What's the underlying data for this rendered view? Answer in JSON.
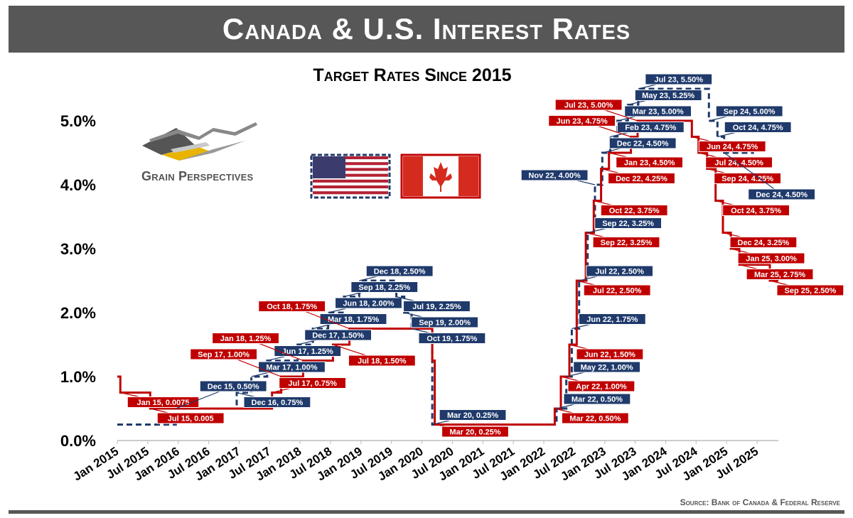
{
  "header": {
    "title": "Canada & U.S. Interest Rates",
    "subtitle": "Target Rates Since 2015"
  },
  "logo": {
    "text": "Grain Perspectives",
    "icon": "grain-perspectives-logo-icon"
  },
  "flags": [
    {
      "name": "us-flag-icon",
      "color": "#b22234"
    },
    {
      "name": "canada-flag-icon",
      "color": "#d52b1e"
    }
  ],
  "source": "Source: Bank of Canada & Federal Reserve",
  "colors": {
    "us": "#1f3a6b",
    "canada": "#c00000",
    "banner": "#575757"
  },
  "chart_data": {
    "type": "line",
    "title": "Target Rates Since 2015",
    "xlim": [
      2015.0,
      2025.85
    ],
    "ylim": [
      0,
      5.5
    ],
    "yticks": [
      "0.0%",
      "1.0%",
      "2.0%",
      "3.0%",
      "4.0%",
      "5.0%"
    ],
    "xticks": [
      "Jan 2015",
      "Jul 2015",
      "Jan 2016",
      "Jul 2016",
      "Jan 2017",
      "Jul 2017",
      "Jan 2018",
      "Jul 2018",
      "Jan 2019",
      "Jul 2019",
      "Jan 2020",
      "Jul 2020",
      "Jan 2021",
      "Jul 2021",
      "Jan 2022",
      "Jul 2022",
      "Jan 2023",
      "Jul 2023",
      "Jan 2024",
      "Jul 2024",
      "Jan 2025",
      "Jul 2025"
    ],
    "series": [
      {
        "key": "us",
        "style": "dashed",
        "color": "#1f3a6b",
        "points": [
          [
            2015.0,
            0.25
          ],
          [
            2015.96,
            0.25
          ],
          [
            2015.96,
            0.5
          ],
          [
            2016.96,
            0.5
          ],
          [
            2016.96,
            0.75
          ],
          [
            2017.2,
            0.75
          ],
          [
            2017.2,
            1.0
          ],
          [
            2017.46,
            1.0
          ],
          [
            2017.46,
            1.25
          ],
          [
            2017.96,
            1.25
          ],
          [
            2017.96,
            1.5
          ],
          [
            2018.21,
            1.5
          ],
          [
            2018.21,
            1.75
          ],
          [
            2018.46,
            1.75
          ],
          [
            2018.46,
            2.0
          ],
          [
            2018.72,
            2.0
          ],
          [
            2018.72,
            2.25
          ],
          [
            2018.97,
            2.25
          ],
          [
            2018.97,
            2.5
          ],
          [
            2019.58,
            2.5
          ],
          [
            2019.58,
            2.25
          ],
          [
            2019.71,
            2.25
          ],
          [
            2019.71,
            2.0
          ],
          [
            2019.83,
            2.0
          ],
          [
            2019.83,
            1.75
          ],
          [
            2020.17,
            1.75
          ],
          [
            2020.17,
            0.25
          ],
          [
            2022.21,
            0.25
          ],
          [
            2022.21,
            0.5
          ],
          [
            2022.37,
            0.5
          ],
          [
            2022.37,
            1.0
          ],
          [
            2022.46,
            1.0
          ],
          [
            2022.46,
            1.75
          ],
          [
            2022.58,
            1.75
          ],
          [
            2022.58,
            2.5
          ],
          [
            2022.72,
            2.5
          ],
          [
            2022.72,
            3.25
          ],
          [
            2022.84,
            3.25
          ],
          [
            2022.84,
            4.0
          ],
          [
            2022.96,
            4.0
          ],
          [
            2022.96,
            4.5
          ],
          [
            2023.09,
            4.5
          ],
          [
            2023.09,
            4.75
          ],
          [
            2023.21,
            4.75
          ],
          [
            2023.21,
            5.0
          ],
          [
            2023.38,
            5.0
          ],
          [
            2023.38,
            5.25
          ],
          [
            2023.55,
            5.25
          ],
          [
            2023.55,
            5.5
          ],
          [
            2024.71,
            5.5
          ],
          [
            2024.71,
            5.0
          ],
          [
            2024.85,
            5.0
          ],
          [
            2024.85,
            4.75
          ],
          [
            2024.96,
            4.75
          ],
          [
            2024.96,
            4.5
          ],
          [
            2025.45,
            4.5
          ]
        ]
      },
      {
        "key": "canada",
        "style": "solid",
        "color": "#c00000",
        "points": [
          [
            2015.0,
            1.0
          ],
          [
            2015.05,
            1.0
          ],
          [
            2015.05,
            0.75
          ],
          [
            2015.54,
            0.75
          ],
          [
            2015.54,
            0.5
          ],
          [
            2017.54,
            0.5
          ],
          [
            2017.54,
            0.75
          ],
          [
            2017.69,
            0.75
          ],
          [
            2017.69,
            1.0
          ],
          [
            2018.05,
            1.0
          ],
          [
            2018.05,
            1.25
          ],
          [
            2018.54,
            1.25
          ],
          [
            2018.54,
            1.5
          ],
          [
            2018.81,
            1.5
          ],
          [
            2018.81,
            1.75
          ],
          [
            2020.17,
            1.75
          ],
          [
            2020.17,
            1.25
          ],
          [
            2020.21,
            1.25
          ],
          [
            2020.21,
            0.25
          ],
          [
            2022.18,
            0.25
          ],
          [
            2022.18,
            0.5
          ],
          [
            2022.28,
            0.5
          ],
          [
            2022.28,
            1.0
          ],
          [
            2022.42,
            1.0
          ],
          [
            2022.42,
            1.5
          ],
          [
            2022.54,
            1.5
          ],
          [
            2022.54,
            2.5
          ],
          [
            2022.69,
            2.5
          ],
          [
            2022.69,
            3.25
          ],
          [
            2022.82,
            3.25
          ],
          [
            2022.82,
            3.75
          ],
          [
            2022.94,
            3.75
          ],
          [
            2022.94,
            4.25
          ],
          [
            2023.07,
            4.25
          ],
          [
            2023.07,
            4.5
          ],
          [
            2023.43,
            4.5
          ],
          [
            2023.43,
            4.75
          ],
          [
            2023.54,
            4.75
          ],
          [
            2023.54,
            5.0
          ],
          [
            2024.43,
            5.0
          ],
          [
            2024.43,
            4.75
          ],
          [
            2024.54,
            4.75
          ],
          [
            2024.54,
            4.5
          ],
          [
            2024.68,
            4.5
          ],
          [
            2024.68,
            4.25
          ],
          [
            2024.82,
            4.25
          ],
          [
            2024.82,
            3.75
          ],
          [
            2024.94,
            3.75
          ],
          [
            2024.94,
            3.25
          ],
          [
            2025.07,
            3.25
          ],
          [
            2025.07,
            3.0
          ],
          [
            2025.21,
            3.0
          ],
          [
            2025.21,
            2.75
          ],
          [
            2025.71,
            2.75
          ],
          [
            2025.71,
            2.5
          ],
          [
            2025.85,
            2.5
          ]
        ]
      }
    ],
    "annotations": [
      {
        "text": "Jan 15, 0.0075",
        "series": "canada",
        "x": 2015.05,
        "y": 0.75
      },
      {
        "text": "Jul 15, 0.005",
        "series": "canada",
        "x": 2015.54,
        "y": 0.5
      },
      {
        "text": "Dec 15, 0.50%",
        "series": "us",
        "x": 2015.96,
        "y": 0.5
      },
      {
        "text": "Dec 16, 0.75%",
        "series": "us",
        "x": 2016.96,
        "y": 0.75
      },
      {
        "text": "Mar 17, 1.00%",
        "series": "us",
        "x": 2017.2,
        "y": 1.0
      },
      {
        "text": "Jun 17, 1.25%",
        "series": "us",
        "x": 2017.46,
        "y": 1.25
      },
      {
        "text": "Dec 17, 1.50%",
        "series": "us",
        "x": 2017.96,
        "y": 1.5
      },
      {
        "text": "Mar 18, 1.75%",
        "series": "us",
        "x": 2018.21,
        "y": 1.75
      },
      {
        "text": "Jun 18, 2.00%",
        "series": "us",
        "x": 2018.46,
        "y": 2.0
      },
      {
        "text": "Sep 18, 2.25%",
        "series": "us",
        "x": 2018.72,
        "y": 2.25
      },
      {
        "text": "Dec 18, 2.50%",
        "series": "us",
        "x": 2018.97,
        "y": 2.5
      },
      {
        "text": "Jul 17, 0.75%",
        "series": "canada",
        "x": 2017.54,
        "y": 0.75
      },
      {
        "text": "Sep 17, 1.00%",
        "series": "canada",
        "x": 2017.69,
        "y": 1.0
      },
      {
        "text": "Jan 18, 1.25%",
        "series": "canada",
        "x": 2018.05,
        "y": 1.25
      },
      {
        "text": "Jul 18, 1.50%",
        "series": "canada",
        "x": 2018.54,
        "y": 1.5
      },
      {
        "text": "Oct 18, 1.75%",
        "series": "canada",
        "x": 2018.81,
        "y": 1.75
      },
      {
        "text": "Jul 19, 2.25%",
        "series": "us",
        "x": 2019.58,
        "y": 2.25
      },
      {
        "text": "Sep 19, 2.00%",
        "series": "us",
        "x": 2019.71,
        "y": 2.0
      },
      {
        "text": "Oct 19, 1.75%",
        "series": "us",
        "x": 2019.83,
        "y": 1.75
      },
      {
        "text": "Mar 20, 0.25%",
        "series": "us",
        "x": 2020.17,
        "y": 0.25
      },
      {
        "text": "Mar 20, 0.25%",
        "series": "canada",
        "x": 2020.21,
        "y": 0.25
      },
      {
        "text": "Mar 22, 0.50%",
        "series": "canada",
        "x": 2022.18,
        "y": 0.5
      },
      {
        "text": "Apr 22, 1.00%",
        "series": "canada",
        "x": 2022.28,
        "y": 1.0
      },
      {
        "text": "Jun 22, 1.50%",
        "series": "canada",
        "x": 2022.42,
        "y": 1.5
      },
      {
        "text": "Jul 22, 2.50%",
        "series": "canada",
        "x": 2022.54,
        "y": 2.5
      },
      {
        "text": "Sep 22, 3.25%",
        "series": "canada",
        "x": 2022.69,
        "y": 3.25
      },
      {
        "text": "Oct 22, 3.75%",
        "series": "canada",
        "x": 2022.82,
        "y": 3.75
      },
      {
        "text": "Dec 22, 4.25%",
        "series": "canada",
        "x": 2022.94,
        "y": 4.25
      },
      {
        "text": "Jan 23, 4.50%",
        "series": "canada",
        "x": 2023.07,
        "y": 4.5
      },
      {
        "text": "Mar 22, 0.50%",
        "series": "us",
        "x": 2022.21,
        "y": 0.5
      },
      {
        "text": "May 22, 1.00%",
        "series": "us",
        "x": 2022.37,
        "y": 1.0
      },
      {
        "text": "Jun 22, 1.75%",
        "series": "us",
        "x": 2022.46,
        "y": 1.75
      },
      {
        "text": "Jul 22, 2.50%",
        "series": "us",
        "x": 2022.58,
        "y": 2.5
      },
      {
        "text": "Sep 22, 3.25%",
        "series": "us",
        "x": 2022.72,
        "y": 3.25
      },
      {
        "text": "Nov 22, 4.00%",
        "series": "us",
        "x": 2022.84,
        "y": 4.0
      },
      {
        "text": "Dec 22, 4.50%",
        "series": "us",
        "x": 2022.96,
        "y": 4.5
      },
      {
        "text": "Feb 23, 4.75%",
        "series": "us",
        "x": 2023.09,
        "y": 4.75
      },
      {
        "text": "Mar 23, 5.00%",
        "series": "us",
        "x": 2023.21,
        "y": 5.0
      },
      {
        "text": "May 23, 5.25%",
        "series": "us",
        "x": 2023.38,
        "y": 5.25
      },
      {
        "text": "Jul 23, 5.50%",
        "series": "us",
        "x": 2023.55,
        "y": 5.5
      },
      {
        "text": "Jun 23, 4.75%",
        "series": "canada",
        "x": 2023.43,
        "y": 4.75
      },
      {
        "text": "Jul 23, 5.00%",
        "series": "canada",
        "x": 2023.54,
        "y": 5.0
      },
      {
        "text": "Jun 24, 4.75%",
        "series": "canada",
        "x": 2024.43,
        "y": 4.75
      },
      {
        "text": "Jul 24, 4.50%",
        "series": "canada",
        "x": 2024.54,
        "y": 4.5
      },
      {
        "text": "Sep 24, 4.25%",
        "series": "canada",
        "x": 2024.68,
        "y": 4.25
      },
      {
        "text": "Oct 24, 3.75%",
        "series": "canada",
        "x": 2024.82,
        "y": 3.75
      },
      {
        "text": "Dec 24, 3.25%",
        "series": "canada",
        "x": 2024.94,
        "y": 3.25
      },
      {
        "text": "Jan 25, 3.00%",
        "series": "canada",
        "x": 2025.07,
        "y": 3.0
      },
      {
        "text": "Mar 25, 2.75%",
        "series": "canada",
        "x": 2025.21,
        "y": 2.75
      },
      {
        "text": "Sep 25, 2.50%",
        "series": "canada",
        "x": 2025.71,
        "y": 2.5
      },
      {
        "text": "Sep 24, 5.00%",
        "series": "us",
        "x": 2024.71,
        "y": 5.0
      },
      {
        "text": "Oct 24, 4.75%",
        "series": "us",
        "x": 2024.85,
        "y": 4.75
      },
      {
        "text": "Dec 24, 4.50%",
        "series": "us",
        "x": 2024.96,
        "y": 4.5
      }
    ]
  }
}
